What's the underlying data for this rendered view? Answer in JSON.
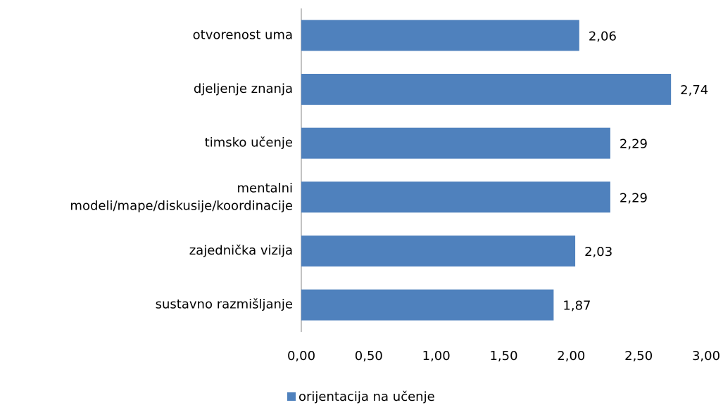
{
  "chart_data": {
    "type": "bar",
    "orientation": "horizontal",
    "categories": [
      "otvorenost uma",
      "djeljenje znanja",
      "timsko učenje",
      "mentalni modeli/mape/diskusije/koordinacije",
      "zajednička vizija",
      "sustavno razmišljanje"
    ],
    "series": [
      {
        "name": "orijentacija na učenje",
        "color": "#4f81bd",
        "values": [
          2.06,
          2.74,
          2.29,
          2.29,
          2.03,
          1.87
        ],
        "value_labels": [
          "2,06",
          "2,74",
          "2,29",
          "2,29",
          "2,03",
          "1,87"
        ]
      }
    ],
    "xlim": [
      0,
      3
    ],
    "xticks": [
      {
        "value": 0,
        "label": "0,00"
      },
      {
        "value": 0.5,
        "label": "0,50"
      },
      {
        "value": 1,
        "label": "1,00"
      },
      {
        "value": 1.5,
        "label": "1,50"
      },
      {
        "value": 2,
        "label": "2,00"
      },
      {
        "value": 2.5,
        "label": "2,50"
      },
      {
        "value": 3,
        "label": "3,00"
      }
    ],
    "legend": "bottom"
  }
}
